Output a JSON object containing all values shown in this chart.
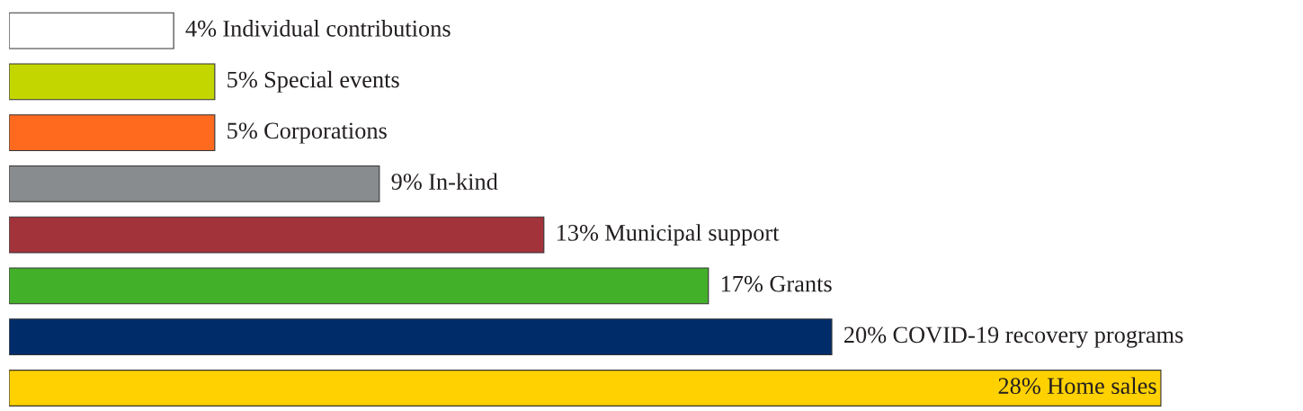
{
  "chart_data": {
    "type": "bar",
    "orientation": "horizontal",
    "categories": [
      "Individual contributions",
      "Special events",
      "Corporations",
      "In-kind",
      "Municipal support",
      "Grants",
      "COVID-19 recovery programs",
      "Home sales"
    ],
    "values": [
      4,
      5,
      5,
      9,
      13,
      17,
      20,
      28
    ],
    "value_labels": [
      "4%",
      "5%",
      "5%",
      "9%",
      "13%",
      "17%",
      "20%",
      "28%"
    ],
    "colors": [
      "#ffffff",
      "#c4d600",
      "#ff6a1f",
      "#898c8e",
      "#a3333b",
      "#43b02a",
      "#002d6a",
      "#ffd100"
    ],
    "legend": false,
    "tick_labels": false
  }
}
